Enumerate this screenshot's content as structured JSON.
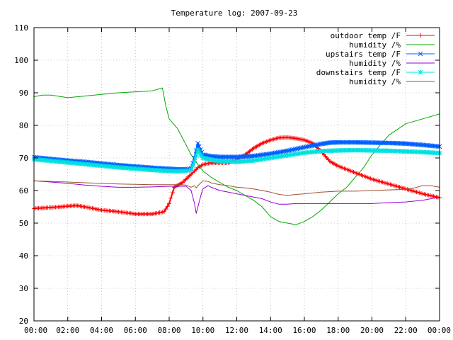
{
  "chart_data": {
    "type": "line",
    "title": "Temperature log: 2007-09-23",
    "xlabel": "",
    "ylabel": "",
    "x_ticks": [
      "00:00",
      "02:00",
      "04:00",
      "06:00",
      "08:00",
      "10:00",
      "12:00",
      "14:00",
      "16:00",
      "18:00",
      "20:00",
      "22:00",
      "00:00"
    ],
    "x_hours": [
      0,
      2,
      4,
      6,
      8,
      10,
      12,
      14,
      16,
      18,
      20,
      22,
      24
    ],
    "y_ticks": [
      20,
      30,
      40,
      50,
      60,
      70,
      80,
      90,
      100,
      110
    ],
    "xlim": [
      0,
      24
    ],
    "ylim": [
      20,
      110
    ],
    "grid": true,
    "legend_position": "top-right",
    "series": [
      {
        "name": "outdoor temp /F",
        "color": "#ff0000",
        "marker": "plus",
        "width": 2,
        "x": [
          0,
          1,
          2,
          2.5,
          3,
          4,
          5,
          6,
          7,
          7.7,
          8,
          8.3,
          8.8,
          9.3,
          9.7,
          10,
          10.5,
          11,
          11.5,
          12,
          12.5,
          13,
          13.5,
          14,
          14.5,
          15,
          15.5,
          16,
          16.5,
          17,
          17.5,
          18,
          19,
          20,
          21,
          22,
          23,
          24
        ],
        "y": [
          54.5,
          54.8,
          55.2,
          55.4,
          55,
          54,
          53.5,
          52.8,
          52.8,
          53.5,
          56,
          61,
          62.5,
          65,
          67,
          68,
          68.5,
          68.5,
          68.5,
          69.5,
          71,
          73,
          74.5,
          75.5,
          76.2,
          76.3,
          76,
          75.5,
          74.5,
          72,
          69,
          67.5,
          65.5,
          63.5,
          62,
          60.5,
          59,
          57.8
        ]
      },
      {
        "name": "humidity /%",
        "color": "#00aa00",
        "marker": "none",
        "width": 1,
        "x": [
          0,
          0.5,
          1,
          2,
          3,
          4,
          5,
          6,
          7,
          7.6,
          7.8,
          8,
          8.5,
          9,
          9.3,
          9.7,
          10,
          10.5,
          11,
          11.5,
          12,
          12.5,
          13,
          13.5,
          14,
          14.5,
          15,
          15.5,
          16,
          16.5,
          17,
          17.5,
          18,
          18.5,
          19,
          19.5,
          20,
          20.5,
          21,
          22,
          23,
          24
        ],
        "y": [
          88.8,
          89.3,
          89.3,
          88.5,
          89,
          89.5,
          90,
          90.3,
          90.6,
          91.5,
          86,
          82,
          79,
          74,
          71,
          68,
          66,
          64,
          62.5,
          61,
          60,
          58.5,
          57,
          55,
          52,
          50.5,
          50,
          49.5,
          50.5,
          52,
          54,
          56.5,
          59,
          61,
          64,
          67,
          71,
          74,
          77,
          80.5,
          82,
          83.5
        ]
      },
      {
        "name": "upstairs temp /F",
        "color": "#0060ff",
        "marker": "x",
        "width": 3,
        "x": [
          0,
          1,
          2,
          3,
          4,
          5,
          6,
          7,
          8,
          8.5,
          9,
          9.3,
          9.5,
          9.7,
          9.85,
          10,
          10.5,
          11,
          12,
          13,
          14,
          15,
          16,
          17,
          17.5,
          18,
          19,
          20,
          21,
          22,
          23,
          24
        ],
        "y": [
          70.2,
          69.7,
          69.2,
          68.8,
          68.3,
          67.8,
          67.4,
          67,
          66.7,
          66.5,
          66.5,
          66.8,
          70,
          74.5,
          72.5,
          71,
          70.5,
          70.3,
          70.3,
          70.6,
          71.3,
          72.2,
          73.3,
          74.3,
          74.7,
          74.8,
          74.8,
          74.7,
          74.6,
          74.4,
          74,
          73.5
        ]
      },
      {
        "name": "humidity /%",
        "color": "#9400d3",
        "marker": "none",
        "width": 1,
        "x": [
          0,
          1,
          2,
          3,
          4,
          5,
          6,
          7,
          8,
          8.5,
          9,
          9.3,
          9.5,
          9.6,
          9.7,
          9.9,
          10,
          10.3,
          10.5,
          11,
          11.5,
          12,
          12.5,
          13,
          13.5,
          14,
          14.5,
          15,
          15.5,
          16,
          17,
          18,
          19,
          20,
          21,
          22,
          23,
          24
        ],
        "y": [
          63,
          62.6,
          62.2,
          61.7,
          61.3,
          61,
          61,
          61.1,
          61.3,
          61.3,
          61.3,
          60,
          56,
          53,
          55,
          59,
          60.5,
          61.5,
          61,
          60,
          59.5,
          59,
          58.5,
          58,
          57.5,
          56.5,
          55.8,
          55.8,
          56,
          56,
          56,
          56,
          56,
          56,
          56.3,
          56.5,
          57,
          58
        ]
      },
      {
        "name": "downstairs temp /F",
        "color": "#00e0e0",
        "marker": "star",
        "width": 3,
        "x": [
          0,
          1,
          2,
          3,
          4,
          5,
          6,
          7,
          8,
          8.5,
          9,
          9.3,
          9.5,
          9.7,
          9.85,
          10,
          10.5,
          11,
          12,
          13,
          14,
          15,
          16,
          17,
          18,
          19,
          20,
          21,
          22,
          23,
          24
        ],
        "y": [
          69.6,
          69.1,
          68.6,
          68.1,
          67.6,
          67.1,
          66.7,
          66.3,
          66,
          65.9,
          66,
          66.3,
          69,
          72.5,
          71,
          70,
          69.4,
          69,
          68.8,
          69.2,
          70,
          70.8,
          71.6,
          72.1,
          72.3,
          72.4,
          72.3,
          72.2,
          72,
          71.8,
          71.5
        ]
      },
      {
        "name": "humidity /%",
        "color": "#a0522d",
        "marker": "none",
        "width": 1,
        "x": [
          0,
          1,
          2,
          3,
          4,
          5,
          6,
          7,
          8,
          8.5,
          9,
          9.3,
          9.5,
          9.6,
          9.7,
          9.9,
          10,
          10.3,
          10.5,
          11,
          11.5,
          12,
          12.5,
          13,
          13.5,
          14,
          14.5,
          15,
          15.5,
          16,
          17,
          18,
          19,
          20,
          21,
          22,
          22.5,
          23,
          23.5,
          24
        ],
        "y": [
          63,
          62.8,
          62.6,
          62.4,
          62.2,
          62,
          61.9,
          61.8,
          61.8,
          61.8,
          61.7,
          61,
          61.5,
          60.8,
          61.5,
          62.5,
          63,
          62.8,
          62.3,
          61.8,
          61.5,
          61,
          60.8,
          60.5,
          60,
          59.5,
          58.8,
          58.5,
          58.8,
          59,
          59.5,
          59.8,
          59.8,
          60,
          60.2,
          60.4,
          60.8,
          61.5,
          61.5,
          61
        ]
      }
    ]
  }
}
